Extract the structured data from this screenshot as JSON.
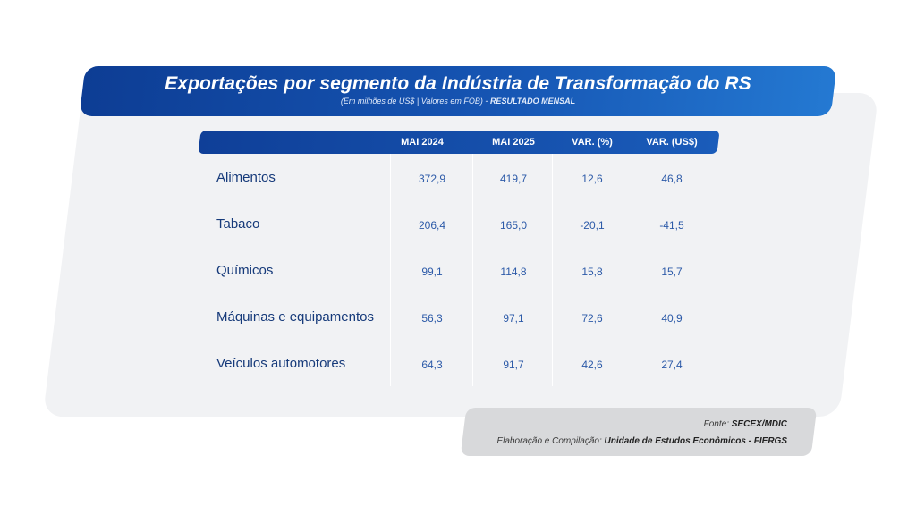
{
  "header": {
    "title": "Exportações por segmento da Indústria de Transformação do RS",
    "subtitle_prefix": "(Em milhões de US$ | Valores em FOB) - ",
    "subtitle_bold": "RESULTADO MENSAL"
  },
  "table": {
    "columns": [
      "MAI 2024",
      "MAI 2025",
      "VAR. (%)",
      "VAR. (US$)"
    ],
    "rows": [
      {
        "label": "Alimentos",
        "values": [
          "372,9",
          "419,7",
          "12,6",
          "46,8"
        ]
      },
      {
        "label": "Tabaco",
        "values": [
          "206,4",
          "165,0",
          "-20,1",
          "-41,5"
        ]
      },
      {
        "label": "Químicos",
        "values": [
          "99,1",
          "114,8",
          "15,8",
          "15,7"
        ]
      },
      {
        "label": "Máquinas e equipamentos",
        "values": [
          "56,3",
          "97,1",
          "72,6",
          "40,9"
        ]
      },
      {
        "label": "Veículos automotores",
        "values": [
          "64,3",
          "91,7",
          "42,6",
          "27,4"
        ]
      }
    ]
  },
  "footer": {
    "fonte_prefix": "Fonte: ",
    "fonte_bold": "SECEX/MDIC",
    "elab_prefix": "Elaboração e Compilação: ",
    "elab_bold": "Unidade de Estudos Econômicos - FIERGS"
  },
  "colors": {
    "banner_dark": "#0d3d94",
    "banner_light": "#2479d2",
    "label_text": "#163a7a",
    "value_text": "#2c5aa8",
    "panel_bg": "#f1f2f4"
  }
}
